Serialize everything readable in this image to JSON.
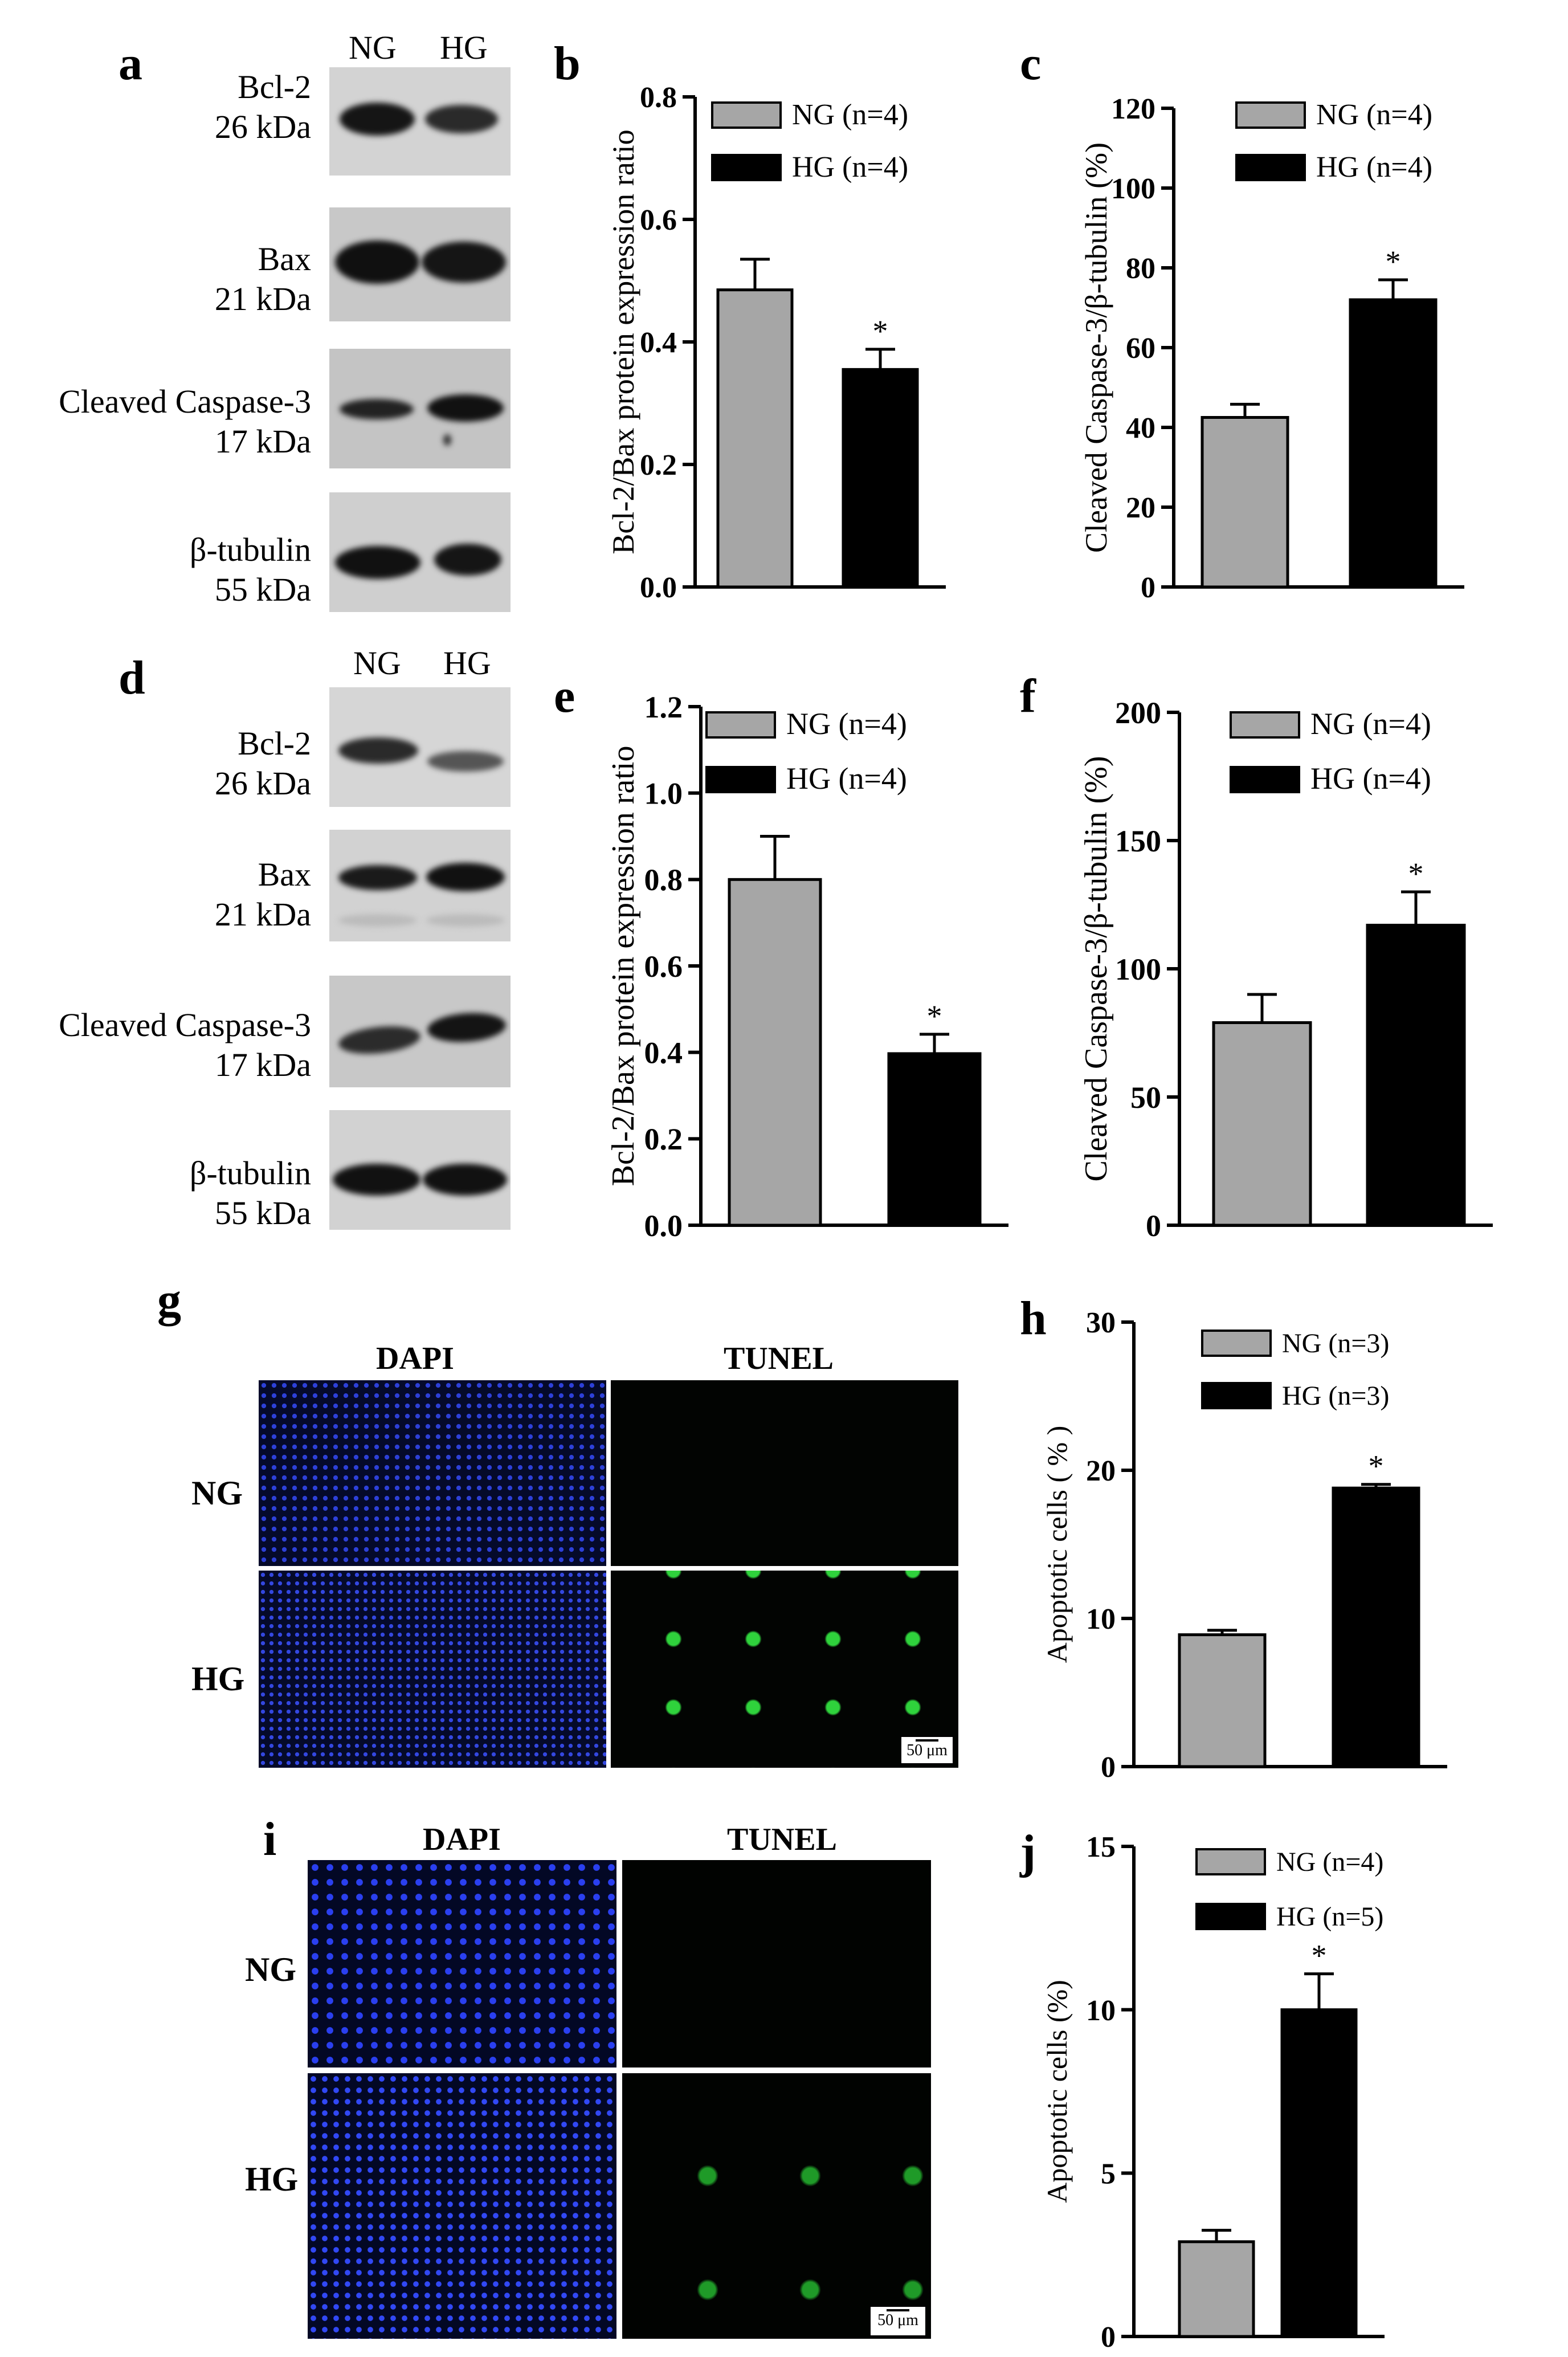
{
  "panels": {
    "a": "a",
    "b": "b",
    "c": "c",
    "d": "d",
    "e": "e",
    "f": "f",
    "g": "g",
    "h": "h",
    "i": "i",
    "j": "j"
  },
  "blot_top": {
    "lanes": [
      "NG",
      "HG"
    ],
    "rows": [
      {
        "protein": "Bcl-2",
        "mw": "26 kDa"
      },
      {
        "protein": "Bax",
        "mw": "21 kDa"
      },
      {
        "protein": "Cleaved Caspase-3",
        "mw": "17 kDa"
      },
      {
        "protein": "β-tubulin",
        "mw": "55 kDa"
      }
    ]
  },
  "blot_bottom": {
    "lanes": [
      "NG",
      "HG"
    ],
    "rows": [
      {
        "protein": "Bcl-2",
        "mw": "26 kDa"
      },
      {
        "protein": "Bax",
        "mw": "21 kDa"
      },
      {
        "protein": "Cleaved Caspase-3",
        "mw": "17 kDa"
      },
      {
        "protein": "β-tubulin",
        "mw": "55 kDa"
      }
    ]
  },
  "tunel_g": {
    "columns": [
      "DAPI",
      "TUNEL"
    ],
    "rows": [
      "NG",
      "HG"
    ],
    "scale_bar": "50 μm"
  },
  "tunel_i": {
    "columns": [
      "DAPI",
      "TUNEL"
    ],
    "rows": [
      "NG",
      "HG"
    ],
    "scale_bar": "50 μm"
  },
  "colors": {
    "NG": "#a6a6a6",
    "HG": "#000000",
    "dapi": "#1a2fd6",
    "tunel": "#28c832"
  },
  "chart_data": [
    {
      "panel": "b",
      "type": "bar",
      "ylabel": "Bcl-2/Bax protein expression ratio",
      "ylim": [
        0,
        0.8
      ],
      "yticks": [
        "0.0",
        "0.2",
        "0.4",
        "0.6",
        "0.8"
      ],
      "series": [
        {
          "name": "NG (n=4)",
          "value": 0.485,
          "error": 0.05,
          "sig": ""
        },
        {
          "name": "HG (n=4)",
          "value": 0.355,
          "error": 0.033,
          "sig": "*"
        }
      ],
      "legend": "top-right"
    },
    {
      "panel": "c",
      "type": "bar",
      "ylabel": "Cleaved Caspase-3/β-tubulin (%)",
      "ylim": [
        0,
        120
      ],
      "yticks": [
        "0",
        "20",
        "40",
        "60",
        "80",
        "100",
        "120"
      ],
      "series": [
        {
          "name": "NG (n=4)",
          "value": 42.5,
          "error": 3.3,
          "sig": ""
        },
        {
          "name": "HG (n=4)",
          "value": 72,
          "error": 5,
          "sig": "*"
        }
      ],
      "legend": "top-right"
    },
    {
      "panel": "e",
      "type": "bar",
      "ylabel": "Bcl-2/Bax protein expression ratio",
      "ylim": [
        0,
        1.2
      ],
      "yticks": [
        "0.0",
        "0.2",
        "0.4",
        "0.6",
        "0.8",
        "1.0",
        "1.2"
      ],
      "series": [
        {
          "name": "NG (n=4)",
          "value": 0.8,
          "error": 0.1,
          "sig": ""
        },
        {
          "name": "HG (n=4)",
          "value": 0.397,
          "error": 0.045,
          "sig": "*"
        }
      ],
      "legend": "top-right"
    },
    {
      "panel": "f",
      "type": "bar",
      "ylabel": "Cleaved Caspase-3/β-tubulin (%)",
      "ylim": [
        0,
        200
      ],
      "yticks": [
        "0",
        "50",
        "100",
        "150",
        "200"
      ],
      "series": [
        {
          "name": "NG (n=4)",
          "value": 79,
          "error": 11,
          "sig": ""
        },
        {
          "name": "HG (n=4)",
          "value": 117,
          "error": 13,
          "sig": "*"
        }
      ],
      "legend": "top-right"
    },
    {
      "panel": "h",
      "type": "bar",
      "ylabel": "Apoptotic cells ( % )",
      "ylim": [
        0,
        30
      ],
      "yticks": [
        "0",
        "10",
        "20",
        "30"
      ],
      "series": [
        {
          "name": "NG (n=3)",
          "value": 8.9,
          "error": 0.3,
          "sig": ""
        },
        {
          "name": "HG (n=3)",
          "value": 18.8,
          "error": 0.25,
          "sig": "*"
        }
      ],
      "legend": "top-right"
    },
    {
      "panel": "j",
      "type": "bar",
      "ylabel": "Apoptotic cells (%)",
      "ylim": [
        0,
        15
      ],
      "yticks": [
        "0",
        "5",
        "10",
        "15"
      ],
      "series": [
        {
          "name": "NG (n=4)",
          "value": 2.9,
          "error": 0.35,
          "sig": ""
        },
        {
          "name": "HG (n=5)",
          "value": 10,
          "error": 1.1,
          "sig": "*"
        }
      ],
      "legend": "top-right"
    }
  ]
}
